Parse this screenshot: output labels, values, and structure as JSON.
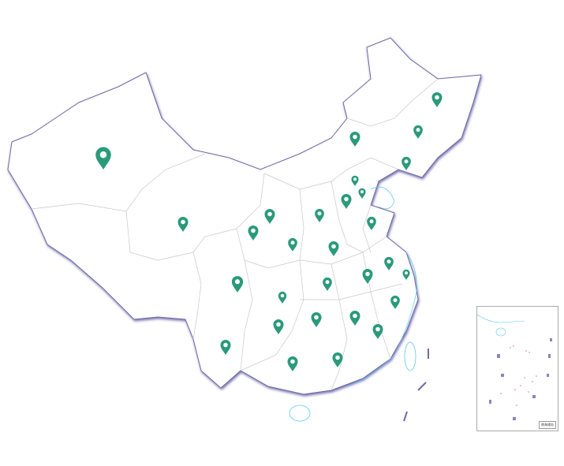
{
  "map": {
    "marker_color": "#2a9a7a",
    "outline_color": "#8a86b8",
    "border_color": "#bbbbbb",
    "water_color": "#5bc8f0",
    "marker_icon": "map-pin-icon"
  },
  "inset": {
    "label": "南海诸岛"
  }
}
